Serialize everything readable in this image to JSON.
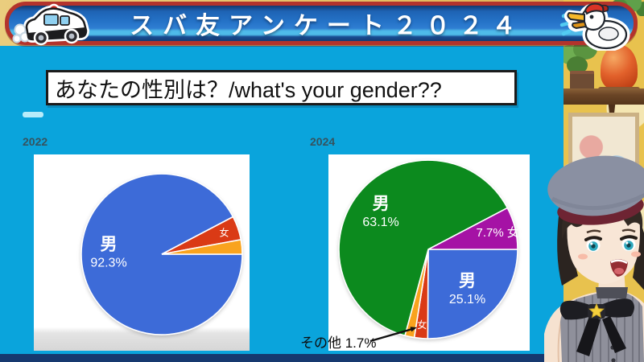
{
  "banner": {
    "title": "スバ友アンケート２０２４"
  },
  "question": {
    "text": "あなたの性別は？/what's your gender??"
  },
  "annotation": {
    "text": "その他 1.7%"
  },
  "colors": {
    "background_cyan": "#0AA4DC",
    "banner_blue": "#2573C8",
    "banner_border_red": "#B3332C",
    "navy_bar": "#16396F",
    "pie_blue": "#3D6BD8",
    "pie_red": "#DA3A15",
    "pie_orange": "#F9A31E",
    "pie_green": "#0C8A1E",
    "pie_purple": "#A512A5"
  },
  "chart_data": [
    {
      "type": "pie",
      "title": "2022",
      "legend_position": "none",
      "start": "3-oclock-clockwise",
      "slices": [
        {
          "label": "男",
          "value": 92.3,
          "color": "#3D6BD8",
          "lines": [
            "男",
            "92.3%"
          ],
          "label_r": 0.66,
          "label_angle": 182
        },
        {
          "label": "女",
          "value": 4.8,
          "color": "#DA3A15",
          "lines": [
            "女"
          ],
          "size": 12,
          "label_r": 0.82
        },
        {
          "label": "その他",
          "value": 2.9,
          "color": "#F9A31E"
        }
      ]
    },
    {
      "type": "pie",
      "title": "2024",
      "legend_position": "none",
      "start": "3-oclock-clockwise",
      "slices": [
        {
          "label": "男",
          "value": 25.1,
          "color": "#3D6BD8",
          "lines": [
            "男",
            "25.1%"
          ],
          "label_r": 0.62
        },
        {
          "label": "女",
          "value": 2.4,
          "color": "#DA3A15",
          "lines": [
            "女"
          ],
          "size": 12,
          "label_r": 0.85
        },
        {
          "label": "その他",
          "value": 1.7,
          "color": "#F9A31E"
        },
        {
          "label": "男",
          "value": 63.1,
          "color": "#0C8A1E",
          "lines": [
            "男",
            "63.1%"
          ],
          "label_r": 0.68
        },
        {
          "label": "女",
          "value": 7.7,
          "color": "#A512A5",
          "lines": [
            "7.7% 女"
          ],
          "size": 15,
          "label_r": 0.8
        }
      ]
    }
  ],
  "icons": {
    "banner_left": "police-car-icon",
    "banner_right": "duck-icon"
  }
}
